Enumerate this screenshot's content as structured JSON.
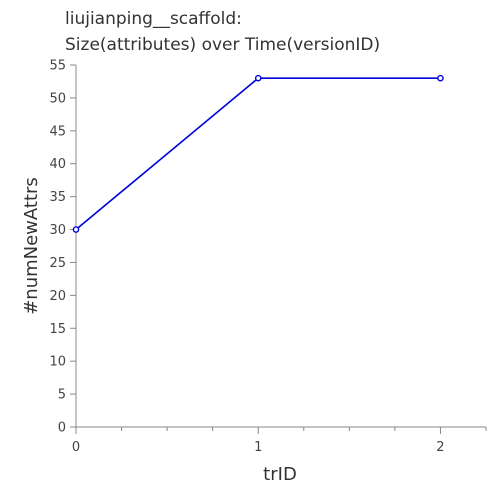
{
  "chart_data": {
    "type": "line",
    "title_line1": "liujianping__scaffold:",
    "title_line2": "Size(attributes) over Time(versionID)",
    "xlabel": "trID",
    "ylabel": "#numNewAttrs",
    "x": [
      0,
      1,
      2
    ],
    "series": [
      {
        "values": [
          30,
          53,
          53
        ],
        "color": "#0000dd"
      }
    ],
    "xlim": [
      0,
      2.25
    ],
    "ylim": [
      0,
      55
    ],
    "xticks": [
      0,
      1,
      2
    ],
    "xminor": [
      0.25,
      0.5,
      0.75,
      1.25,
      1.5,
      1.75,
      2.25
    ],
    "yticks": [
      0,
      5,
      10,
      15,
      20,
      25,
      30,
      35,
      40,
      45,
      50,
      55
    ],
    "grid": false
  }
}
